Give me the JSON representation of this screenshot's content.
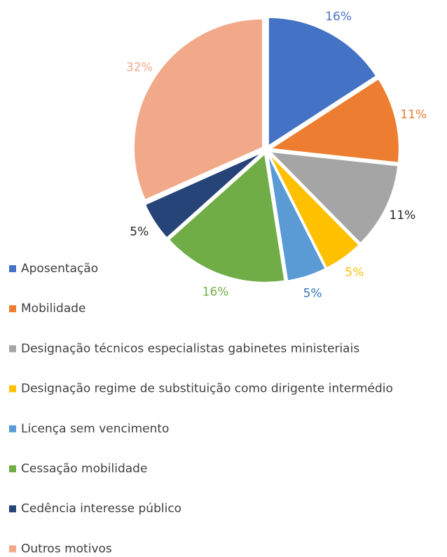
{
  "chart_data": {
    "type": "pie",
    "categories": [
      "Aposentação",
      "Mobilidade",
      "Designação técnicos especialistas gabinetes ministeriais",
      "Designação regime de substituição como dirigente intermédio",
      "Licença sem vencimento",
      "Cessação mobilidade",
      "Cedência interesse público",
      "Outros motivos"
    ],
    "values": [
      16,
      11,
      11,
      5,
      5,
      16,
      5,
      32
    ],
    "value_labels": [
      "16%",
      "11%",
      "11%",
      "5%",
      "5%",
      "16%",
      "5%",
      "32%"
    ],
    "colors": [
      "#4472c4",
      "#ed7d31",
      "#a5a5a5",
      "#ffc000",
      "#5b9bd5",
      "#70ad47",
      "#264478",
      "#f1a98a"
    ],
    "label_colors": [
      "#4472c4",
      "#ed7d31",
      "#262626",
      "#ffc000",
      "#2e75b6",
      "#70ad47",
      "#262626",
      "#f1a98a"
    ],
    "legend": "left"
  }
}
